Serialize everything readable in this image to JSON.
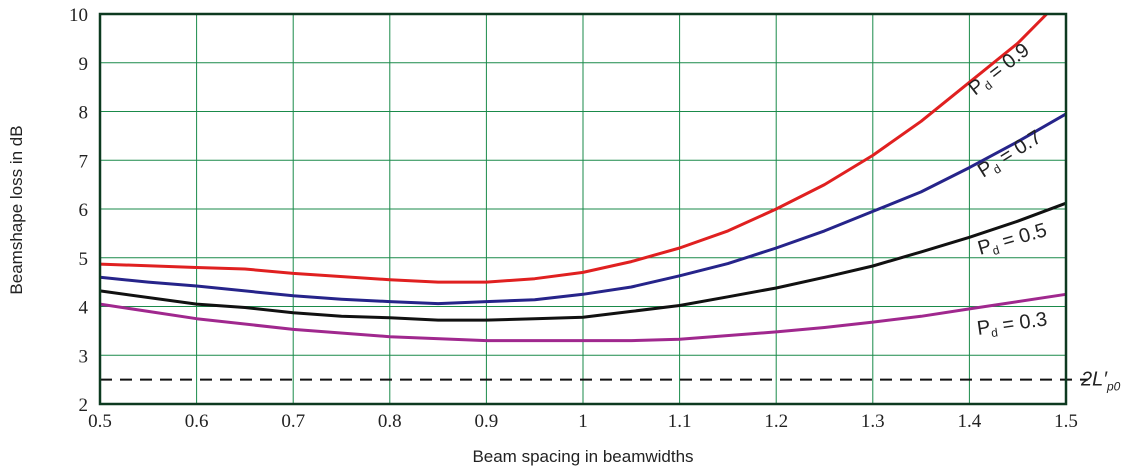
{
  "chart_data": {
    "type": "line",
    "title": "",
    "xlabel": "Beam spacing in beamwidths",
    "ylabel": "Beamshape loss in dB",
    "xlim": [
      0.5,
      1.5
    ],
    "ylim": [
      2,
      10
    ],
    "xticks": [
      "0.5",
      "0.6",
      "0.7",
      "0.8",
      "0.9",
      "1",
      "1.1",
      "1.2",
      "1.3",
      "1.4",
      "1.5"
    ],
    "yticks": [
      "2",
      "3",
      "4",
      "5",
      "6",
      "7",
      "8",
      "9",
      "10"
    ],
    "grid": true,
    "colors": {
      "grid": "#1a8a4a",
      "axis": "#0d3a20"
    },
    "series": [
      {
        "name": "Pd = 0.9",
        "label_main": "P",
        "label_sub": "d",
        "label_rest": " = 0.9",
        "color": "#e02020",
        "x": [
          0.5,
          0.6,
          0.65,
          0.7,
          0.8,
          0.85,
          0.9,
          0.95,
          1.0,
          1.05,
          1.1,
          1.15,
          1.2,
          1.25,
          1.3,
          1.35,
          1.4,
          1.45,
          1.48
        ],
        "y": [
          4.87,
          4.8,
          4.77,
          4.68,
          4.55,
          4.5,
          4.5,
          4.57,
          4.7,
          4.92,
          5.2,
          5.55,
          6.0,
          6.5,
          7.1,
          7.8,
          8.6,
          9.4,
          10.0
        ]
      },
      {
        "name": "Pd = 0.7",
        "label_main": "P",
        "label_sub": "d",
        "label_rest": " = 0.7",
        "color": "#26248a",
        "x": [
          0.5,
          0.55,
          0.6,
          0.7,
          0.75,
          0.8,
          0.85,
          0.9,
          0.95,
          1.0,
          1.05,
          1.1,
          1.15,
          1.2,
          1.25,
          1.3,
          1.35,
          1.4,
          1.45,
          1.5
        ],
        "y": [
          4.6,
          4.5,
          4.42,
          4.22,
          4.15,
          4.1,
          4.06,
          4.1,
          4.14,
          4.25,
          4.4,
          4.63,
          4.88,
          5.2,
          5.55,
          5.95,
          6.35,
          6.85,
          7.38,
          7.95
        ]
      },
      {
        "name": "Pd = 0.5",
        "label_main": "P",
        "label_sub": "d",
        "label_rest": " = 0.5",
        "color": "#111111",
        "x": [
          0.5,
          0.6,
          0.65,
          0.7,
          0.75,
          0.8,
          0.85,
          0.9,
          0.95,
          1.0,
          1.05,
          1.1,
          1.15,
          1.2,
          1.25,
          1.3,
          1.35,
          1.4,
          1.45,
          1.5
        ],
        "y": [
          4.32,
          4.05,
          3.98,
          3.87,
          3.8,
          3.77,
          3.72,
          3.72,
          3.75,
          3.78,
          3.9,
          4.02,
          4.2,
          4.38,
          4.6,
          4.83,
          5.12,
          5.42,
          5.75,
          6.12
        ]
      },
      {
        "name": "Pd = 0.3",
        "label_main": "P",
        "label_sub": "d",
        "label_rest": " = 0.3",
        "color": "#a0288e",
        "x": [
          0.5,
          0.6,
          0.7,
          0.8,
          0.9,
          1.0,
          1.05,
          1.1,
          1.2,
          1.25,
          1.3,
          1.35,
          1.4,
          1.5
        ],
        "y": [
          4.05,
          3.75,
          3.53,
          3.38,
          3.3,
          3.3,
          3.3,
          3.33,
          3.48,
          3.57,
          3.68,
          3.8,
          3.95,
          4.25
        ]
      }
    ],
    "reference_line": {
      "y": 2.5,
      "style": "dashed",
      "label_main": "2L",
      "label_sub": "p0",
      "label_prime": "′"
    }
  }
}
